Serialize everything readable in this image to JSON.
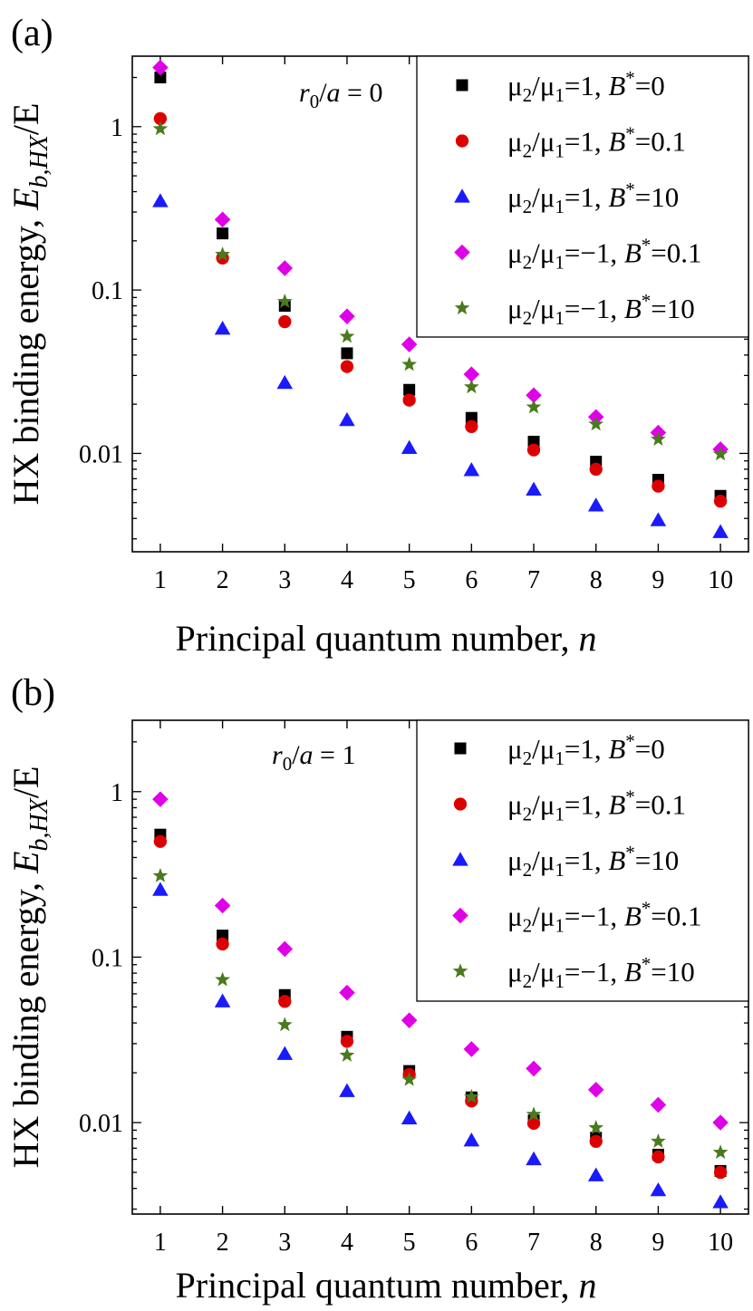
{
  "chart_data": [
    {
      "type": "scatter",
      "panel_label": "(a)",
      "annotation": {
        "prefix": "r",
        "sub": "0",
        "mid": "/",
        "italic": "a",
        "suffix": " = 0"
      },
      "xlabel": {
        "text": "Principal quantum number, ",
        "italic": "n"
      },
      "ylabel": {
        "text": "HX binding energy, ",
        "italic": "E",
        "sub": "b,HX",
        "suffix": "/E"
      },
      "x": [
        1,
        2,
        3,
        4,
        5,
        6,
        7,
        8,
        9,
        10
      ],
      "xlim": [
        0.55,
        10.45
      ],
      "ylim": [
        0.0025,
        2.7
      ],
      "yscale": "log",
      "xticks": [
        "1",
        "2",
        "3",
        "4",
        "5",
        "6",
        "7",
        "8",
        "9",
        "10"
      ],
      "yticks": [
        {
          "value": 0.01,
          "label": "0.01"
        },
        {
          "value": 0.1,
          "label": "0.1"
        },
        {
          "value": 1,
          "label": "1"
        }
      ],
      "legend_position": "top-right",
      "series": [
        {
          "name": "μ2/μ1=1, B*=0",
          "ratio": "1",
          "b": "0",
          "marker": "square",
          "color": "#000000",
          "values": [
            2.0,
            0.222,
            0.08,
            0.041,
            0.0245,
            0.0165,
            0.0118,
            0.0089,
            0.0069,
            0.0055
          ]
        },
        {
          "name": "μ2/μ1=1, B*=0.1",
          "ratio": "1",
          "b": "0.1",
          "marker": "circle",
          "color": "#dd0000",
          "values": [
            1.12,
            0.157,
            0.064,
            0.034,
            0.0212,
            0.0146,
            0.0105,
            0.008,
            0.0063,
            0.0051
          ]
        },
        {
          "name": "μ2/μ1=1, B*=10",
          "ratio": "1",
          "b": "10",
          "marker": "triangle",
          "color": "#1a1aff",
          "values": [
            0.35,
            0.058,
            0.027,
            0.016,
            0.0108,
            0.0079,
            0.006,
            0.0048,
            0.0039,
            0.0033
          ]
        },
        {
          "name": "μ2/μ1=−1, B*=0.1",
          "ratio": "−1",
          "b": "0.1",
          "marker": "diamond",
          "color": "#e000e8",
          "values": [
            2.3,
            0.27,
            0.136,
            0.069,
            0.0465,
            0.0305,
            0.0227,
            0.0167,
            0.0134,
            0.0106
          ]
        },
        {
          "name": "μ2/μ1=−1, B*=10",
          "ratio": "−1",
          "b": "10",
          "marker": "star",
          "color": "#4a7a1e",
          "values": [
            0.97,
            0.165,
            0.085,
            0.052,
            0.035,
            0.0255,
            0.0192,
            0.0151,
            0.0122,
            0.0099
          ]
        }
      ]
    },
    {
      "type": "scatter",
      "panel_label": "(b)",
      "annotation": {
        "prefix": "r",
        "sub": "0",
        "mid": "/",
        "italic": "a",
        "suffix": " = 1"
      },
      "xlabel": {
        "text": "Principal quantum number, ",
        "italic": "n"
      },
      "ylabel": {
        "text": "HX binding energy, ",
        "italic": "E",
        "sub": "b,HX",
        "suffix": "/E"
      },
      "x": [
        1,
        2,
        3,
        4,
        5,
        6,
        7,
        8,
        9,
        10
      ],
      "xlim": [
        0.55,
        10.45
      ],
      "ylim": [
        0.0028,
        2.7
      ],
      "yscale": "log",
      "xticks": [
        "1",
        "2",
        "3",
        "4",
        "5",
        "6",
        "7",
        "8",
        "9",
        "10"
      ],
      "yticks": [
        {
          "value": 0.01,
          "label": "0.01"
        },
        {
          "value": 0.1,
          "label": "0.1"
        },
        {
          "value": 1,
          "label": "1"
        }
      ],
      "legend_position": "top-right",
      "series": [
        {
          "name": "μ2/μ1=1, B*=0",
          "ratio": "1",
          "b": "0",
          "marker": "square",
          "color": "#000000",
          "values": [
            0.55,
            0.135,
            0.059,
            0.033,
            0.0205,
            0.0142,
            0.0103,
            0.0081,
            0.0064,
            0.0051
          ]
        },
        {
          "name": "μ2/μ1=1, B*=0.1",
          "ratio": "1",
          "b": "0.1",
          "marker": "circle",
          "color": "#dd0000",
          "values": [
            0.5,
            0.12,
            0.054,
            0.031,
            0.0195,
            0.0135,
            0.0099,
            0.0077,
            0.0062,
            0.005
          ]
        },
        {
          "name": "μ2/μ1=1, B*=10",
          "ratio": "1",
          "b": "10",
          "marker": "triangle",
          "color": "#1a1aff",
          "values": [
            0.255,
            0.054,
            0.026,
            0.0155,
            0.0106,
            0.0078,
            0.006,
            0.0048,
            0.0039,
            0.0033
          ]
        },
        {
          "name": "μ2/μ1=−1, B*=0.1",
          "ratio": "−1",
          "b": "0.1",
          "marker": "diamond",
          "color": "#e000e8",
          "values": [
            0.9,
            0.205,
            0.112,
            0.061,
            0.0415,
            0.0278,
            0.0212,
            0.0158,
            0.0128,
            0.01
          ]
        },
        {
          "name": "μ2/μ1=−1, B*=10",
          "ratio": "−1",
          "b": "10",
          "marker": "star",
          "color": "#4a7a1e",
          "values": [
            0.31,
            0.073,
            0.039,
            0.0255,
            0.0182,
            0.0143,
            0.0112,
            0.0093,
            0.0077,
            0.0066
          ]
        }
      ]
    }
  ],
  "legend_text": {
    "mu": "μ",
    "sub1": "1",
    "sub2": "2",
    "slash": "/",
    "eq": "=",
    "bvar": "B",
    "bsup": "*",
    "comma": ", "
  }
}
